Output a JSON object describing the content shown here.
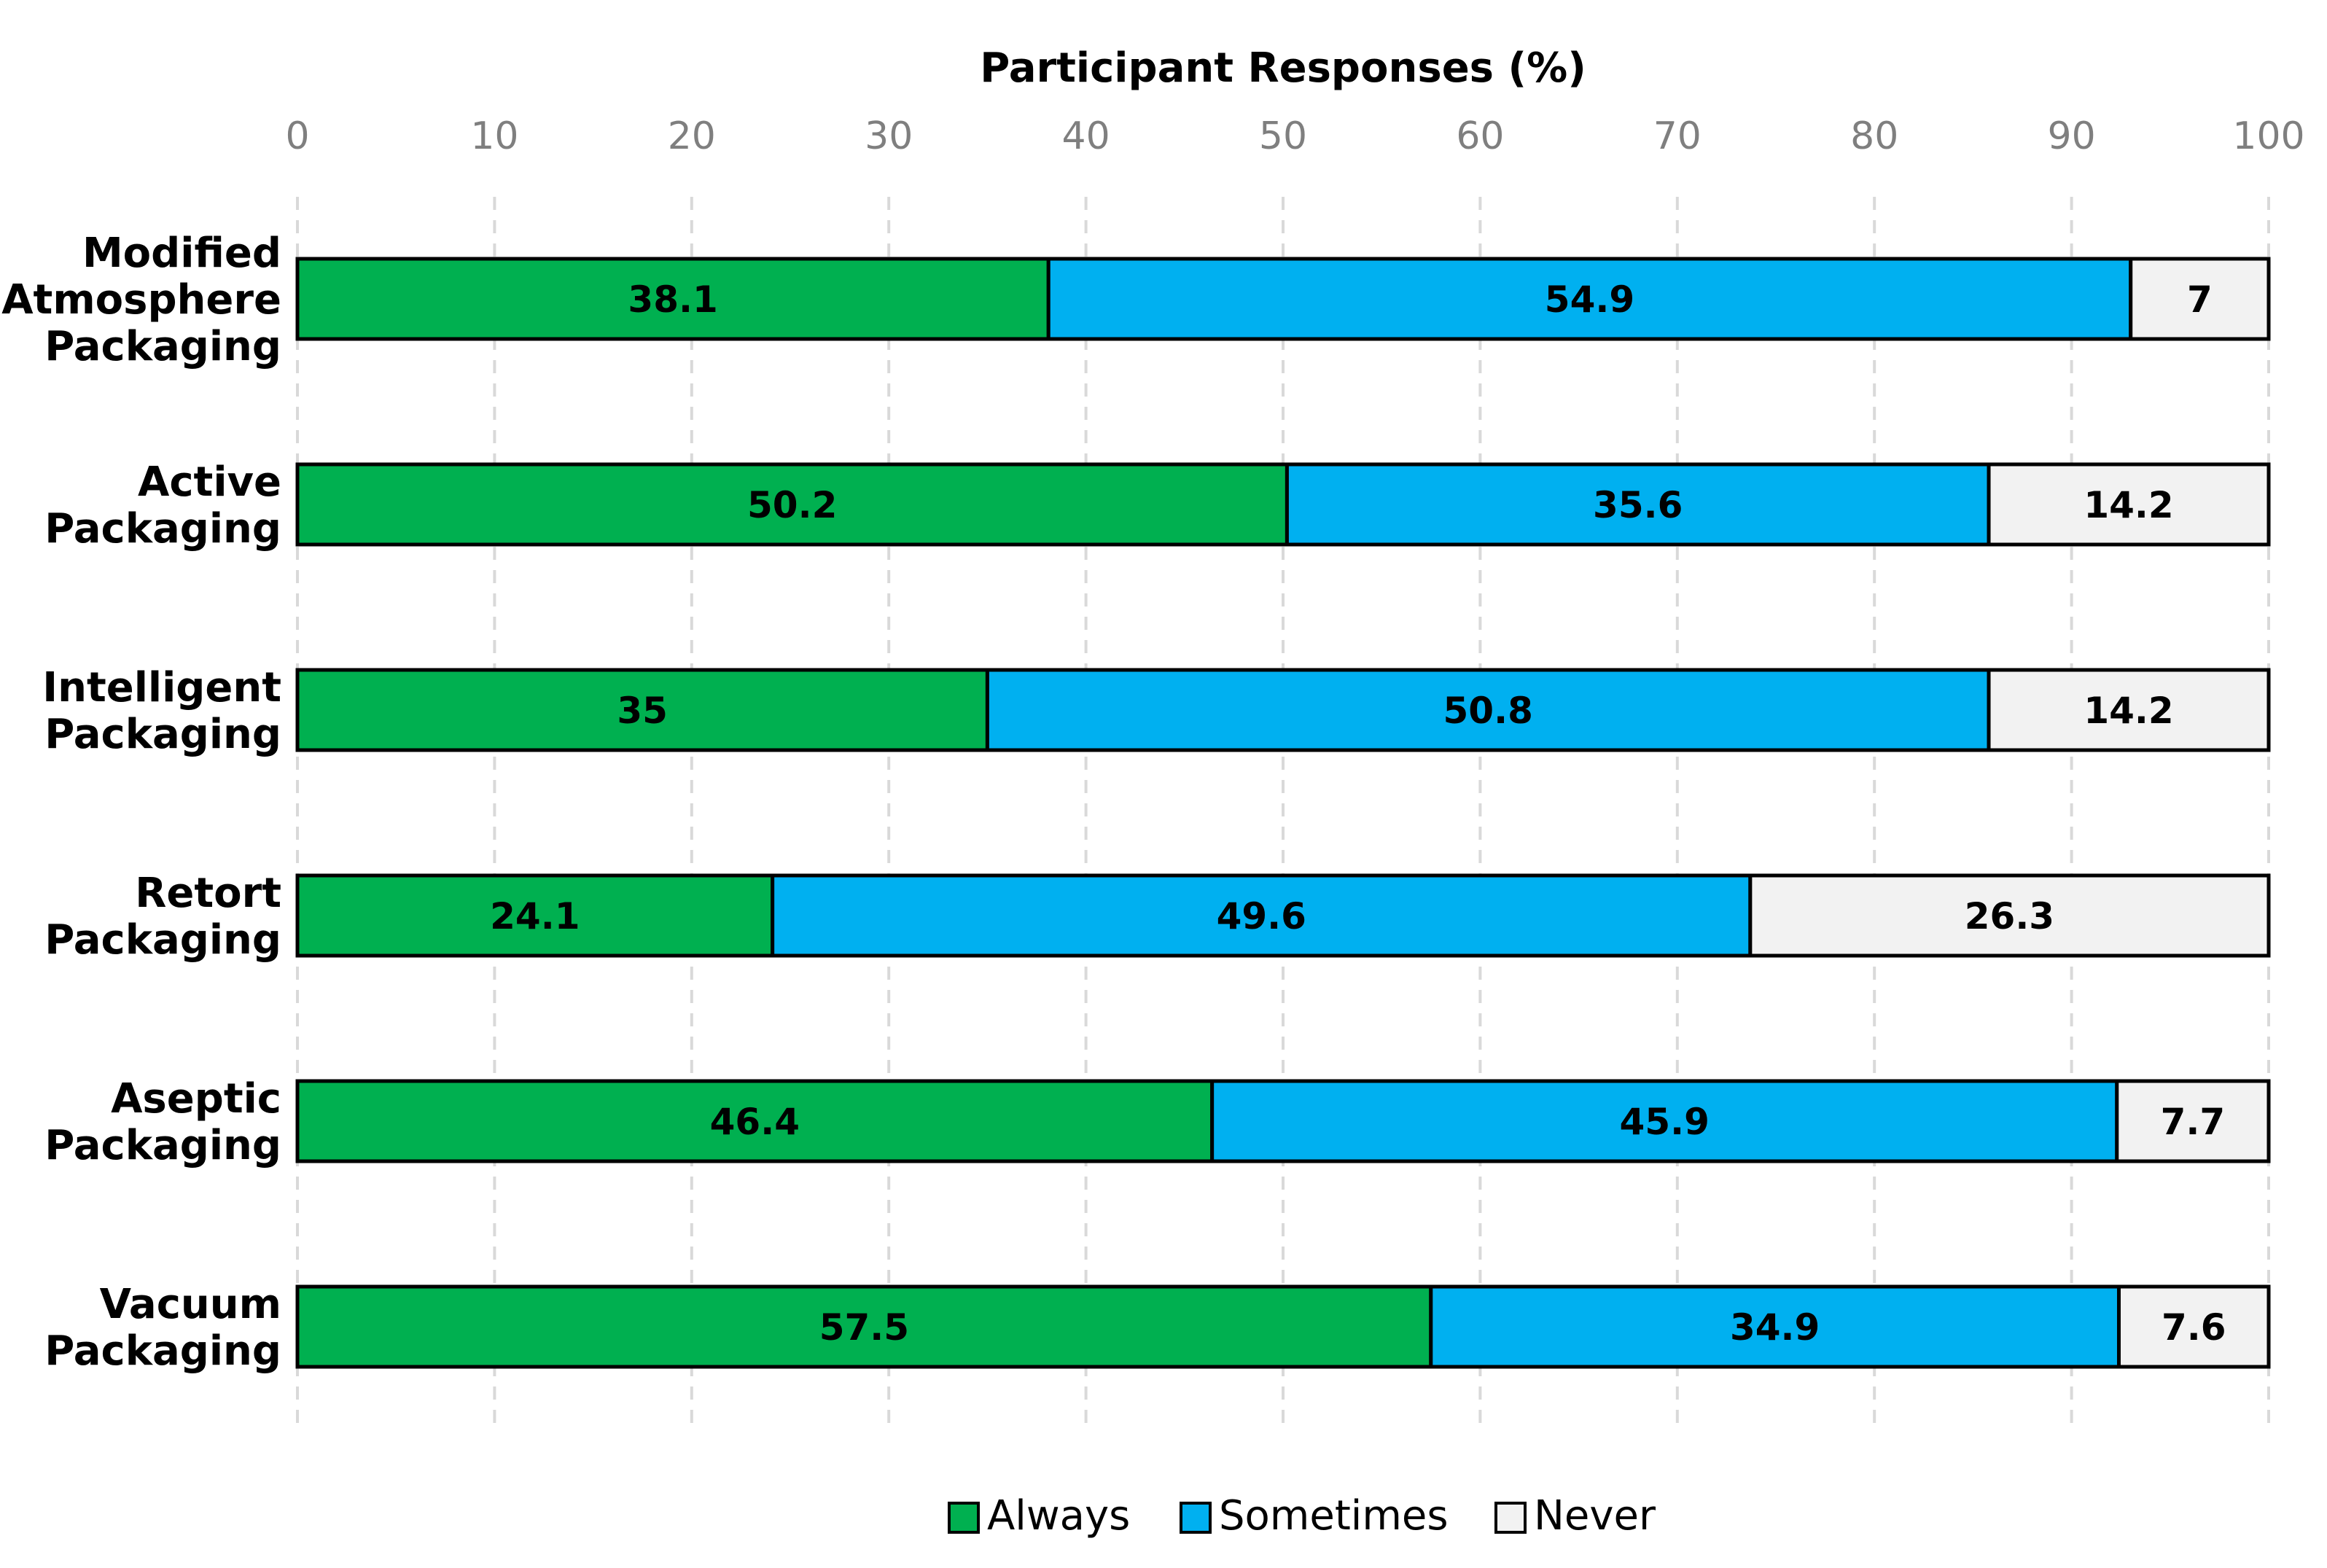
{
  "chart_data": {
    "type": "bar",
    "orientation": "horizontal",
    "stacked": true,
    "title": "",
    "xlabel": "Participant Responses (%)",
    "ylabel": "",
    "xlim": [
      0,
      100
    ],
    "xticks": [
      0,
      10,
      20,
      30,
      40,
      50,
      60,
      70,
      80,
      90,
      100
    ],
    "x_axis_position": "top",
    "grid": true,
    "grid_style": "dashed-vertical",
    "legend_position": "bottom-center",
    "categories": [
      "Modified Atmosphere Packaging",
      "Active Packaging",
      "Intelligent Packaging",
      "Retort Packaging",
      "Aseptic Packaging",
      "Vacuum Packaging"
    ],
    "category_label_lines": [
      [
        "Modified",
        "Atmosphere",
        "Packaging"
      ],
      [
        "Active",
        "Packaging"
      ],
      [
        "Intelligent",
        "Packaging"
      ],
      [
        "Retort",
        "Packaging"
      ],
      [
        "Aseptic",
        "Packaging"
      ],
      [
        "Vacuum",
        "Packaging"
      ]
    ],
    "series": [
      {
        "name": "Always",
        "color": "#00b050",
        "values": [
          38.1,
          50.2,
          35,
          24.1,
          46.4,
          57.5
        ]
      },
      {
        "name": "Sometimes",
        "color": "#00b0f0",
        "values": [
          54.9,
          35.6,
          50.8,
          49.6,
          45.9,
          34.9
        ]
      },
      {
        "name": "Never",
        "color": "#f2f2f2",
        "values": [
          7,
          14.2,
          14.2,
          26.3,
          7.7,
          7.6
        ]
      }
    ]
  }
}
